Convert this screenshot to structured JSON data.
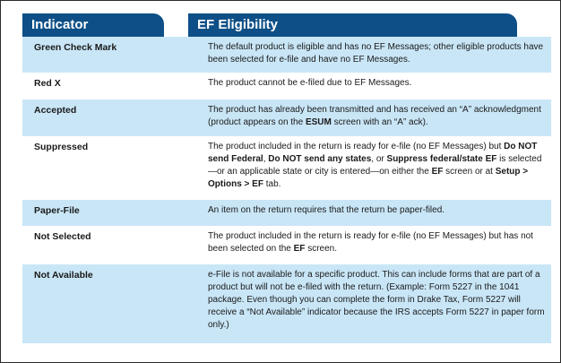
{
  "header": {
    "col1": "Indicator",
    "col2": "EF Eligibility"
  },
  "rows": [
    {
      "indicator": "Green Check Mark",
      "desc": "The default product is eligible and has no EF Messages; other eligible products have been selected for e-file and have no EF Messages."
    },
    {
      "indicator": "Red X",
      "desc": "The product cannot be e-filed due to EF Messages."
    },
    {
      "indicator": "Accepted",
      "desc_parts": [
        "The product has already been transmitted and has received an “A” acknowledgment (product appears on the ",
        "ESUM",
        " screen with an “A” ack)."
      ]
    },
    {
      "indicator": "Suppressed",
      "desc_parts": [
        "The product included in the return is ready for e-file (no EF Messages) but ",
        "Do NOT send Federal",
        ", ",
        "Do NOT send any states",
        ", or ",
        "Suppress federal/state EF",
        " is selected—or an applicable state or city is entered—on either the ",
        "EF",
        " screen or at ",
        "Setup > Options > EF",
        " tab."
      ]
    },
    {
      "indicator": "Paper-File",
      "desc": "An item on the return requires that the return be paper-filed."
    },
    {
      "indicator": "Not Selected",
      "desc_parts": [
        "The product included in the return is ready for e-file (no EF Messages) but has not been selected on the ",
        "EF",
        " screen."
      ]
    },
    {
      "indicator": "Not Available",
      "desc": "e-File is not available for a specific product. This can include forms that are part of a product but will not be e-filed with the return. (Example: Form 5227 in the 1041 package. Even though you can complete the form in Drake Tax, Form 5227 will receive a “Not Available” indicator because the IRS accepts Form 5227 in paper form only.)"
    }
  ],
  "colors": {
    "header_bg": "#0d4f86",
    "shaded_row": "#c9e6f7"
  }
}
